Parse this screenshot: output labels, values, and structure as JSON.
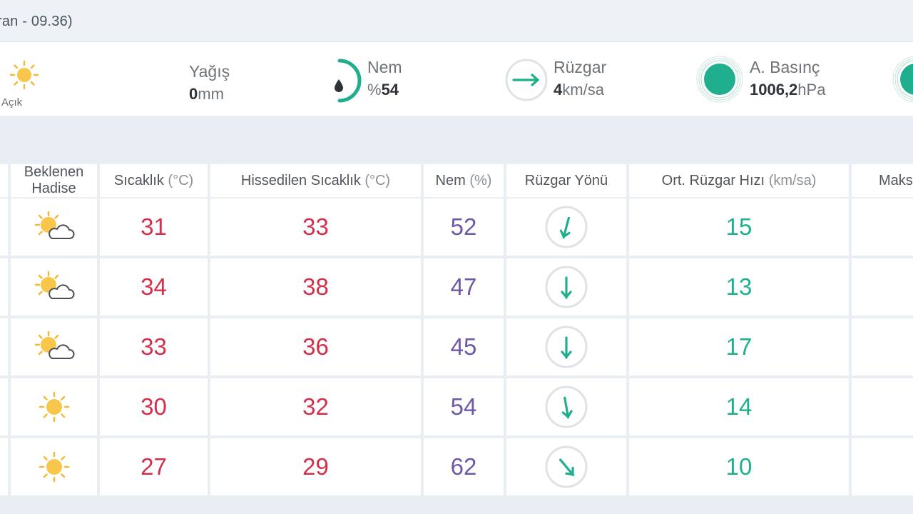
{
  "header": {
    "title": "ran - 09.36)"
  },
  "summary": {
    "condition": {
      "label": "Açık",
      "icon": "sun-icon"
    },
    "precip": {
      "label": "Yağış",
      "value": "0",
      "unit": "mm"
    },
    "humidity": {
      "label": "Nem",
      "prefix": "%",
      "value": "54",
      "icon": "drop-icon"
    },
    "wind": {
      "label": "Rüzgar",
      "value": "4",
      "unit": "km/sa",
      "icon": "arrow-right-icon"
    },
    "pressure": {
      "label": "A. Basınç",
      "value": "1006,2",
      "unit": "hPa",
      "icon": "pressure-dot-icon"
    }
  },
  "table": {
    "headers": {
      "event_line1": "Beklenen",
      "event_line2": "Hadise",
      "temp": "Sıcaklık",
      "temp_unit": "(°C)",
      "feel": "Hissedilen Sıcaklık",
      "feel_unit": "(°C)",
      "hum": "Nem",
      "hum_unit": "(%)",
      "dir": "Rüzgar Yönü",
      "speed": "Ort. Rüzgar Hızı",
      "speed_unit": "(km/sa)",
      "max": "Maks"
    },
    "rows": [
      {
        "icon": "partly-cloudy-icon",
        "temp": "31",
        "feel": "33",
        "hum": "52",
        "dir_deg": 195,
        "speed": "15"
      },
      {
        "icon": "partly-cloudy-icon",
        "temp": "34",
        "feel": "38",
        "hum": "47",
        "dir_deg": 180,
        "speed": "13"
      },
      {
        "icon": "partly-cloudy-icon",
        "temp": "33",
        "feel": "36",
        "hum": "45",
        "dir_deg": 180,
        "speed": "17"
      },
      {
        "icon": "sun-icon",
        "temp": "30",
        "feel": "32",
        "hum": "54",
        "dir_deg": 170,
        "speed": "14"
      },
      {
        "icon": "sun-icon",
        "temp": "27",
        "feel": "29",
        "hum": "62",
        "dir_deg": 140,
        "speed": "10"
      }
    ]
  },
  "colors": {
    "temp": "#d32f4a",
    "humidity": "#6f58a8",
    "wind": "#1faf8e",
    "sun": "#f7b733",
    "accent_green": "#1faf8e"
  }
}
